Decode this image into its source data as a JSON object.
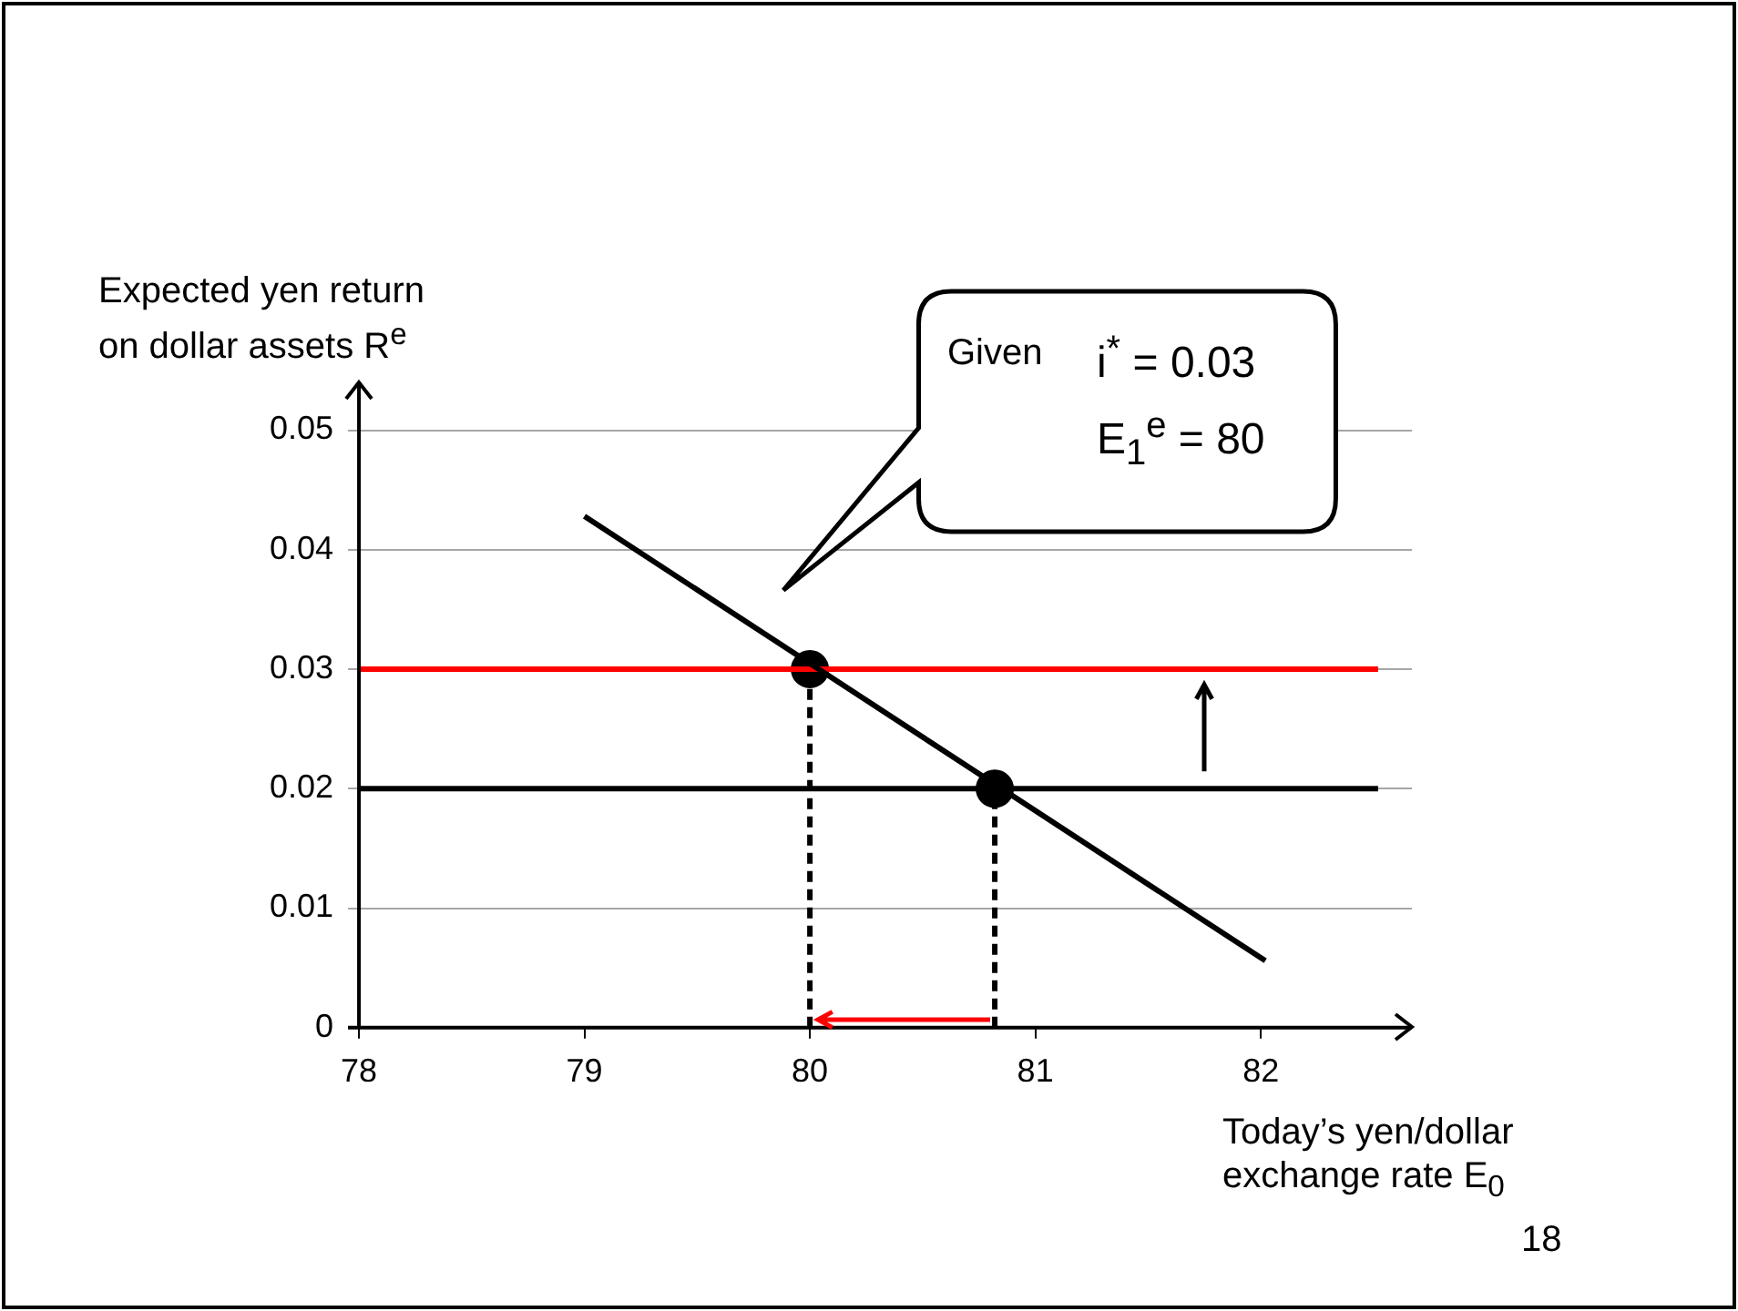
{
  "chart_data": {
    "type": "line",
    "xlabel": "Today’s yen/dollar exchange rate  E$_{0}$",
    "ylabel": "Expected yen return on dollar assets  R$^{e}$",
    "annotations": [
      "Given",
      "i$^{*}$ = 0.03",
      "E$_{1}$$^{e}$ = 80",
      "18"
    ],
    "xlim": [
      78,
      82.67
    ],
    "xticks": [
      78,
      79,
      80,
      81,
      82
    ],
    "ylim": [
      0,
      0.054
    ],
    "yticks": [
      0,
      0.01,
      0.02,
      0.03,
      0.04,
      0.05
    ],
    "grid": "y",
    "legend": false,
    "marker": "none",
    "line_style": "solid",
    "series": [
      {
        "type": "line",
        "color": "#000000",
        "x": [
          79,
          82.02
        ],
        "values": [
          0.0428,
          0.0056
        ]
      },
      {
        "type": "line",
        "color": "#ff0000",
        "x": [
          78,
          82.52
        ],
        "values": [
          0.03,
          0.03
        ]
      },
      {
        "type": "line",
        "color": "#000000",
        "x": [
          78,
          82.52
        ],
        "values": [
          0.02,
          0.02
        ]
      },
      {
        "type": "line",
        "color": "#000000",
        "line_style": "dashed",
        "x": [
          80,
          80
        ],
        "values": [
          0,
          0.03
        ]
      },
      {
        "type": "line",
        "color": "#000000",
        "line_style": "dashed",
        "x": [
          80.82,
          80.82
        ],
        "values": [
          0,
          0.02
        ]
      },
      {
        "type": "scatter",
        "color": "#000000",
        "marker": "circle",
        "x": [
          80,
          80.82
        ],
        "values": [
          0.03,
          0.02
        ]
      }
    ]
  }
}
